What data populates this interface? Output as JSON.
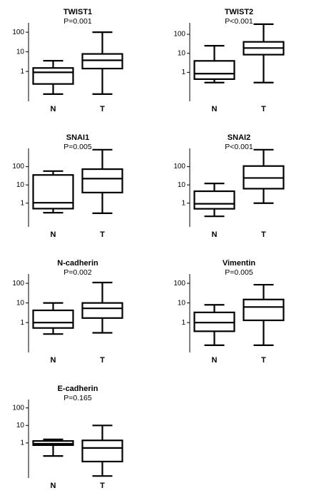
{
  "chart_data": [
    {
      "type": "box",
      "title": "TWIST1",
      "subtitle": "P=0.001",
      "categories": [
        "N",
        "T"
      ],
      "log_scale": true,
      "ylim": [
        0.03,
        300
      ],
      "yticks": [
        1,
        10,
        100
      ],
      "min": [
        0.07,
        0.07
      ],
      "q1": [
        0.23,
        1.4
      ],
      "median": [
        0.9,
        3.7
      ],
      "q3": [
        1.5,
        7.8
      ],
      "max": [
        3.5,
        100
      ]
    },
    {
      "type": "box",
      "title": "TWIST2",
      "subtitle": "P<0.001",
      "categories": [
        "N",
        "T"
      ],
      "log_scale": true,
      "ylim": [
        0.03,
        400
      ],
      "yticks": [
        1,
        10,
        100
      ],
      "min": [
        0.29,
        0.29
      ],
      "q1": [
        0.44,
        8.5
      ],
      "median": [
        0.85,
        19
      ],
      "q3": [
        4,
        40
      ],
      "max": [
        25,
        340
      ]
    },
    {
      "type": "box",
      "title": "SNAI1",
      "subtitle": "P=0.005",
      "categories": [
        "N",
        "T"
      ],
      "log_scale": true,
      "ylim": [
        0.05,
        1000
      ],
      "yticks": [
        1,
        10,
        100
      ],
      "min": [
        0.3,
        0.28
      ],
      "q1": [
        0.5,
        3.8
      ],
      "median": [
        1.05,
        22
      ],
      "q3": [
        35,
        73
      ],
      "max": [
        57,
        850
      ]
    },
    {
      "type": "box",
      "title": "SNAI2",
      "subtitle": "P<0.001",
      "categories": [
        "N",
        "T"
      ],
      "log_scale": true,
      "ylim": [
        0.05,
        1000
      ],
      "yticks": [
        1,
        10,
        100
      ],
      "min": [
        0.19,
        1
      ],
      "q1": [
        0.49,
        6.2
      ],
      "median": [
        0.92,
        24
      ],
      "q3": [
        4.5,
        108
      ],
      "max": [
        12,
        850
      ]
    },
    {
      "type": "box",
      "title": "N-cadherin",
      "subtitle": "P=0.002",
      "categories": [
        "N",
        "T"
      ],
      "log_scale": true,
      "ylim": [
        0.03,
        300
      ],
      "yticks": [
        1,
        10,
        100
      ],
      "min": [
        0.26,
        0.3
      ],
      "q1": [
        0.53,
        1.7
      ],
      "median": [
        1,
        5.3
      ],
      "q3": [
        4.2,
        10
      ],
      "max": [
        10,
        110
      ]
    },
    {
      "type": "box",
      "title": "Vimentin",
      "subtitle": "P=0.005",
      "categories": [
        "N",
        "T"
      ],
      "log_scale": true,
      "ylim": [
        0.03,
        300
      ],
      "yticks": [
        1,
        10,
        100
      ],
      "min": [
        0.07,
        0.07
      ],
      "q1": [
        0.36,
        1.3
      ],
      "median": [
        1,
        6.2
      ],
      "q3": [
        3.3,
        15
      ],
      "max": [
        8,
        85
      ]
    },
    {
      "type": "box",
      "title": "E-cadherin",
      "subtitle": "P=0.165",
      "categories": [
        "N",
        "T"
      ],
      "log_scale": true,
      "ylim": [
        0.01,
        300
      ],
      "yticks": [
        1,
        10,
        100
      ],
      "min": [
        0.18,
        0.013
      ],
      "q1": [
        0.75,
        0.087
      ],
      "median": [
        0.9,
        0.52
      ],
      "q3": [
        1.3,
        1.4
      ],
      "max": [
        1.6,
        10
      ]
    }
  ]
}
